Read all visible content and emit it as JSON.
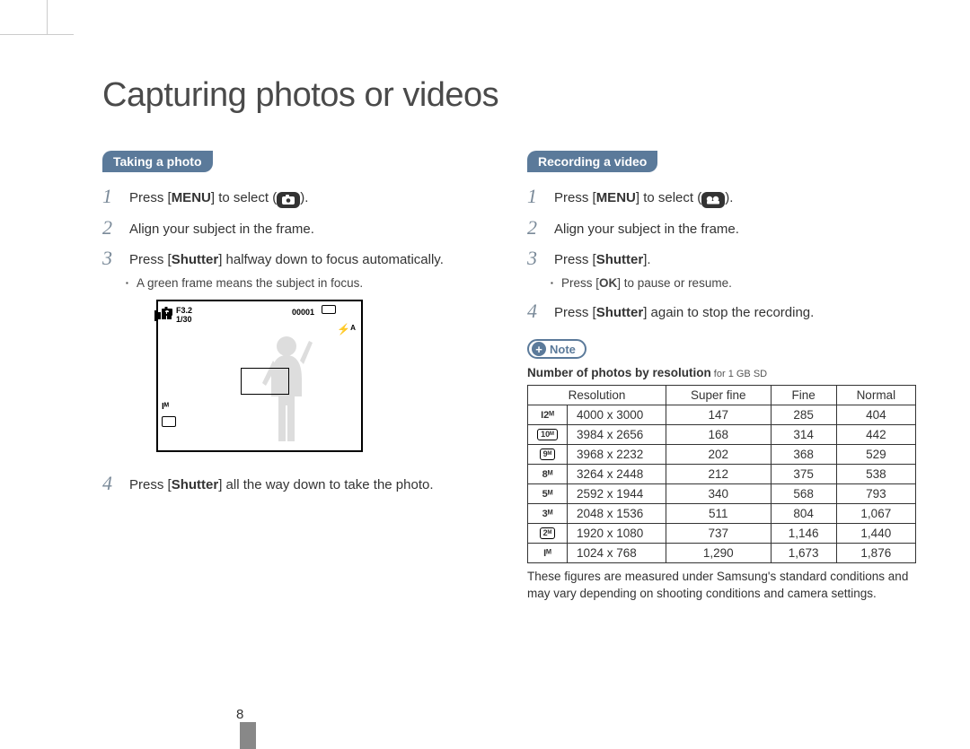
{
  "page": {
    "title": "Capturing photos or videos",
    "number": "8"
  },
  "left": {
    "section": "Taking a photo",
    "steps": {
      "s1_pre": "Press [",
      "s1_menu": "MENU",
      "s1_mid": "] to select (",
      "s1_post": ").",
      "s2": "Align your subject in the frame.",
      "s3_pre": "Press [",
      "s3_bold": "Shutter",
      "s3_post": "] halfway down to focus automatically.",
      "s3_sub": "A green frame means the subject in focus.",
      "s4_pre": "Press [",
      "s4_bold": "Shutter",
      "s4_post": "] all the way down to take the photo."
    },
    "preview": {
      "f": "F3.2",
      "shutter": "1/30",
      "count": "00001",
      "size_icon": "Iᴹ"
    }
  },
  "right": {
    "section": "Recording a video",
    "steps": {
      "s1_pre": "Press [",
      "s1_menu": "MENU",
      "s1_mid": "] to select (",
      "s1_post": ").",
      "s2": "Align your subject in the frame.",
      "s3_pre": "Press [",
      "s3_bold": "Shutter",
      "s3_post": "].",
      "s3_sub_pre": "Press [",
      "s3_sub_ok": "OK",
      "s3_sub_post": "] to pause or resume.",
      "s4_pre": "Press [",
      "s4_bold": "Shutter",
      "s4_post": "] again to stop the recording."
    },
    "note_label": "Note",
    "table_title_bold": "Number of photos by resolution",
    "table_title_small": " for 1 GB SD",
    "table": {
      "headers": [
        "Resolution",
        "Super fine",
        "Fine",
        "Normal"
      ],
      "rows": [
        {
          "icon": "I2ᴹ",
          "boxed": false,
          "res": "4000 x 3000",
          "sf": "147",
          "f": "285",
          "n": "404"
        },
        {
          "icon": "10ᴹ",
          "boxed": true,
          "res": "3984 x 2656",
          "sf": "168",
          "f": "314",
          "n": "442"
        },
        {
          "icon": "9ᴹ",
          "boxed": true,
          "res": "3968 x 2232",
          "sf": "202",
          "f": "368",
          "n": "529"
        },
        {
          "icon": "8ᴹ",
          "boxed": false,
          "res": "3264 x 2448",
          "sf": "212",
          "f": "375",
          "n": "538"
        },
        {
          "icon": "5ᴹ",
          "boxed": false,
          "res": "2592 x 1944",
          "sf": "340",
          "f": "568",
          "n": "793"
        },
        {
          "icon": "3ᴹ",
          "boxed": false,
          "res": "2048 x 1536",
          "sf": "511",
          "f": "804",
          "n": "1,067"
        },
        {
          "icon": "2ᴹ",
          "boxed": true,
          "res": "1920 x 1080",
          "sf": "737",
          "f": "1,146",
          "n": "1,440"
        },
        {
          "icon": "Iᴹ",
          "boxed": false,
          "res": "1024 x 768",
          "sf": "1,290",
          "f": "1,673",
          "n": "1,876"
        }
      ]
    },
    "footnote": "These figures are measured under Samsung's standard conditions and may vary depending on shooting conditions and camera settings."
  }
}
